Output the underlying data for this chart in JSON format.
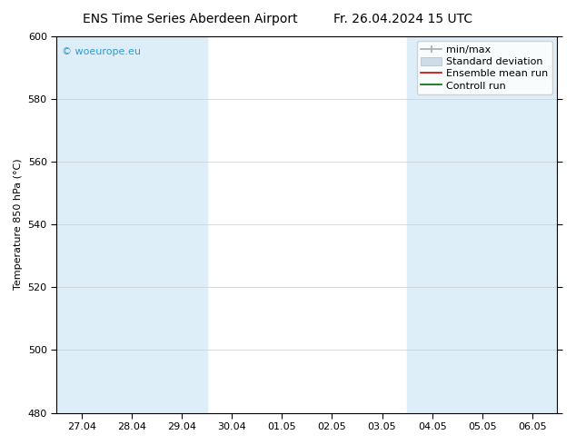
{
  "title": "ENS Time Series Aberdeen Airport",
  "title2": "Fr. 26.04.2024 15 UTC",
  "ylabel": "Temperature 850 hPa (°C)",
  "ylim": [
    480,
    600
  ],
  "yticks": [
    480,
    500,
    520,
    540,
    560,
    580,
    600
  ],
  "x_labels": [
    "27.04",
    "28.04",
    "29.04",
    "30.04",
    "01.05",
    "02.05",
    "03.05",
    "04.05",
    "05.05",
    "06.05"
  ],
  "x_positions": [
    0,
    1,
    2,
    3,
    4,
    5,
    6,
    7,
    8,
    9
  ],
  "xlim": [
    -0.5,
    9.5
  ],
  "shaded_bands": [
    {
      "xmin": -0.5,
      "xmax": 2.5
    },
    {
      "xmin": 6.5,
      "xmax": 9.5
    }
  ],
  "shade_color": "#ddeef8",
  "bg_color": "#ffffff",
  "plot_bg_color": "#ffffff",
  "watermark": "© woeurope.eu",
  "watermark_color": "#3399cc",
  "legend_items": [
    {
      "label": "min/max",
      "color": "#aaaaaa",
      "type": "errbar"
    },
    {
      "label": "Standard deviation",
      "color": "#ccddee",
      "type": "box"
    },
    {
      "label": "Ensemble mean run",
      "color": "#cc0000",
      "type": "line"
    },
    {
      "label": "Controll run",
      "color": "#006600",
      "type": "line"
    }
  ],
  "title_fontsize": 10,
  "axis_fontsize": 8,
  "tick_fontsize": 8,
  "legend_fontsize": 8
}
